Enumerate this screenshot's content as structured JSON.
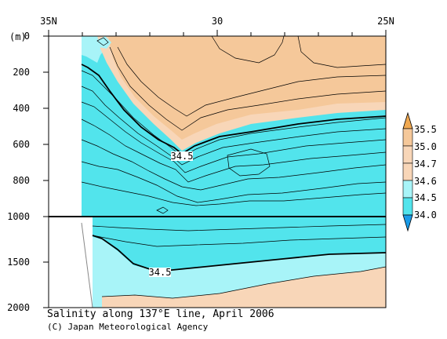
{
  "chart_data": {
    "type": "heatmap",
    "title": "Salinity along 137°E line, April 2006",
    "credit": "(C) Japan Meteorological Agency",
    "xlabel": "",
    "ylabel": "(m)",
    "x_ticks": [
      "35N",
      "30",
      "25N"
    ],
    "x_range": [
      35,
      25
    ],
    "y_ticks_upper": [
      "0",
      "200",
      "400",
      "600",
      "800",
      "1000"
    ],
    "y_ticks_lower": [
      "1500",
      "2000"
    ],
    "y_range_upper": [
      0,
      1000
    ],
    "y_range_lower": [
      1000,
      2000
    ],
    "y_break": 1000,
    "colorbar": {
      "levels": [
        "35.5",
        "35.0",
        "34.7",
        "34.6",
        "34.5",
        "34.0"
      ],
      "colors": [
        "#f0a850",
        "#f5c89a",
        "#f8d6b8",
        "#a8f4f8",
        "#52e4ec",
        "#1a9be8"
      ]
    },
    "contour_labels": [
      "34.5",
      "34.5"
    ],
    "fill_colors": {
      "high": "#f5c89a",
      "mid": "#f8d6b8",
      "low": "#a8f4f8",
      "lowest": "#52e4ec"
    }
  }
}
